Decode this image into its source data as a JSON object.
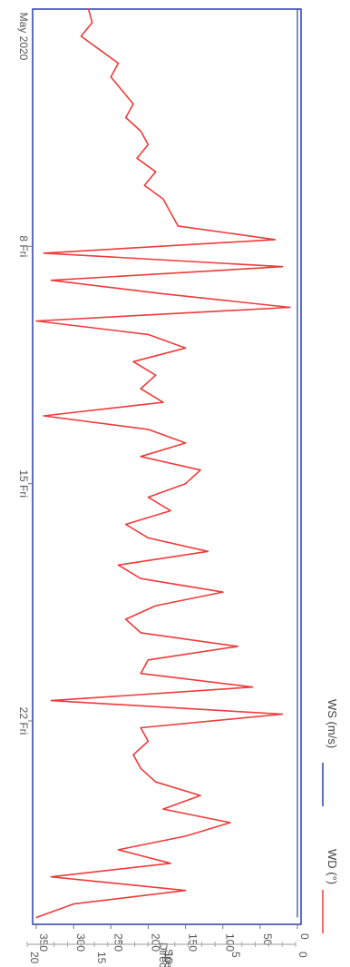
{
  "chart_data": {
    "type": "line",
    "x_axis": {
      "ticks": [
        {
          "x": 8,
          "label": "8 Fri"
        },
        {
          "x": 15,
          "label": "15 Fri"
        },
        {
          "x": 22,
          "label": "22 Fri"
        }
      ],
      "period_label": "May 2020",
      "range_days": [
        1,
        28
      ]
    },
    "y_axis_left": {
      "label": "Speed (m/s)",
      "range": [
        0,
        20
      ],
      "ticks": [
        "0",
        "5",
        "10",
        "15",
        "20"
      ]
    },
    "y_axis_right": {
      "label": "Direction (°)",
      "range": [
        0,
        350
      ],
      "ticks": [
        "0",
        "50",
        "100",
        "150",
        "200",
        "250",
        "300",
        "350"
      ]
    },
    "legend": {
      "position": "top",
      "entries": [
        {
          "name": "WD (°)",
          "color": "#ee3b3b"
        },
        {
          "name": "WS (m/s)",
          "color": "#2b3faa"
        }
      ]
    },
    "series": [
      {
        "name": "WD (°)",
        "axis": "direction",
        "color": "#ee3b3b",
        "x": [
          1,
          1.4,
          1.8,
          2.2,
          2.6,
          3.0,
          3.4,
          3.8,
          4.2,
          4.6,
          5.0,
          5.4,
          5.8,
          6.2,
          6.6,
          7.0,
          7.4,
          7.8,
          8.2,
          8.6,
          9.0,
          9.4,
          9.8,
          10.2,
          10.6,
          11.0,
          11.4,
          11.8,
          12.2,
          12.6,
          13.0,
          13.4,
          13.8,
          14.2,
          14.6,
          15.0,
          15.4,
          15.8,
          16.2,
          16.6,
          17.0,
          17.4,
          17.8,
          18.2,
          18.6,
          19.0,
          19.4,
          19.8,
          20.2,
          20.6,
          21.0,
          21.4,
          21.8,
          22.2,
          22.6,
          23.0,
          23.4,
          23.8,
          24.2,
          24.6,
          25.0,
          25.4,
          25.8,
          26.2,
          26.6,
          27.0,
          27.4,
          27.8
        ],
        "values": [
          280,
          275,
          290,
          265,
          240,
          250,
          235,
          220,
          230,
          210,
          200,
          215,
          190,
          205,
          180,
          170,
          160,
          30,
          340,
          20,
          330,
          180,
          10,
          350,
          200,
          150,
          220,
          190,
          210,
          180,
          340,
          200,
          150,
          210,
          130,
          150,
          200,
          170,
          230,
          200,
          120,
          240,
          210,
          100,
          190,
          230,
          210,
          80,
          200,
          210,
          60,
          330,
          20,
          210,
          200,
          220,
          210,
          190,
          130,
          180,
          90,
          150,
          240,
          170,
          330,
          150,
          300,
          350
        ]
      },
      {
        "name": "WS (m/s)",
        "axis": "speed",
        "color": "#2b3faa",
        "x": [
          1,
          27.8
        ],
        "values": [
          0,
          0
        ]
      }
    ]
  }
}
